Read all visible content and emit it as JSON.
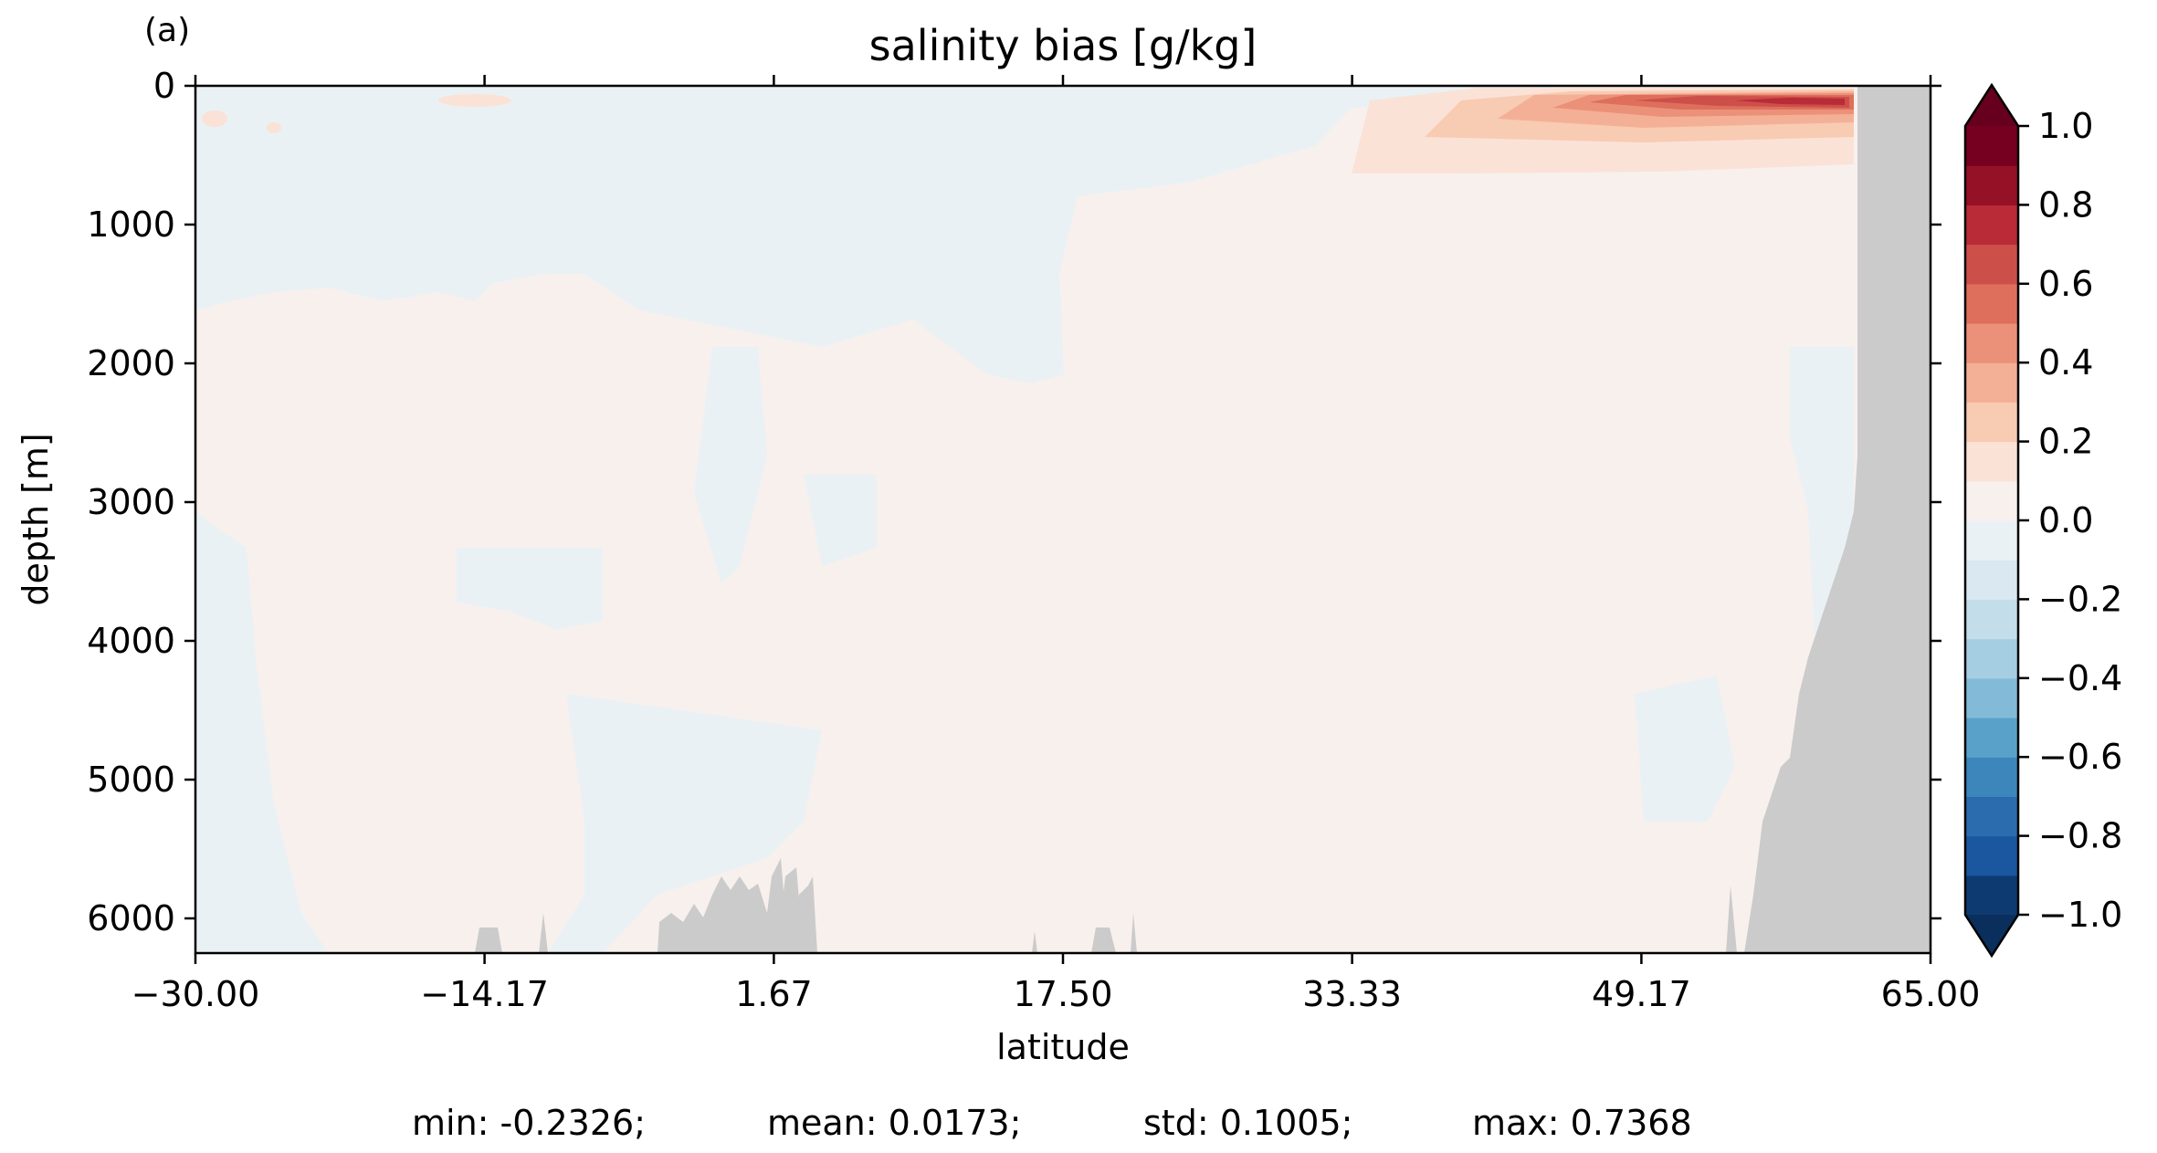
{
  "panel_label": "(a)",
  "stats": [
    {
      "label": "min",
      "value": "-0.2326",
      "text": "min: -0.2326;"
    },
    {
      "label": "mean",
      "value": "0.0173",
      "text": "mean: 0.0173;"
    },
    {
      "label": "std",
      "value": "0.1005",
      "text": "std: 0.1005;"
    },
    {
      "label": "max",
      "value": "0.7368",
      "text": "max: 0.7368"
    }
  ],
  "chart_data": {
    "type": "heatmap",
    "subtype": "filled-contour latitude-depth section",
    "title": "salinity bias [g/kg]",
    "xlabel": "latitude",
    "ylabel": "depth [m]",
    "xlim": [
      -30.0,
      65.0
    ],
    "ylim": [
      6250,
      0
    ],
    "y_inverted": true,
    "x_ticks": [
      -30.0,
      -14.17,
      1.67,
      17.5,
      33.33,
      49.17,
      65.0
    ],
    "x_tick_labels": [
      "−30.00",
      "−14.17",
      "1.67",
      "17.50",
      "33.33",
      "49.17",
      "65.00"
    ],
    "y_ticks": [
      0,
      1000,
      2000,
      3000,
      4000,
      5000,
      6000
    ],
    "y_tick_labels": [
      "0",
      "1000",
      "2000",
      "3000",
      "4000",
      "5000",
      "6000"
    ],
    "colorbar": {
      "cmap": "RdBu_r",
      "levels": [
        -1.0,
        -0.9,
        -0.8,
        -0.7,
        -0.6,
        -0.5,
        -0.4,
        -0.3,
        -0.2,
        -0.1,
        0.0,
        0.1,
        0.2,
        0.3,
        0.4,
        0.5,
        0.6,
        0.7,
        0.8,
        0.9,
        1.0
      ],
      "extend": "both",
      "ticks": [
        1.0,
        0.8,
        0.6,
        0.4,
        0.2,
        0.0,
        -0.2,
        -0.4,
        -0.6,
        -0.8,
        -1.0
      ],
      "tick_labels": [
        "1.0",
        "0.8",
        "0.6",
        "0.4",
        "0.2",
        "0.0",
        "−0.2",
        "−0.4",
        "−0.6",
        "−0.8",
        "−1.0"
      ],
      "colors": [
        "#0d3b71",
        "#1a579f",
        "#2b6cae",
        "#3d86bc",
        "#5aa1ca",
        "#82bad8",
        "#a6cee3",
        "#c3ddeb",
        "#d9e8f1",
        "#eaf1f4",
        "#f8f0ed",
        "#fbe2d6",
        "#f8cbb3",
        "#f4b096",
        "#ec9179",
        "#de6f5c",
        "#cd4f4a",
        "#b82b37",
        "#951125",
        "#75001f"
      ],
      "under_color": "#0b2f5c",
      "over_color": "#67001f"
    },
    "land_color": "#cbcbcb",
    "fields": [
      {
        "name": "near-zero positive background",
        "value_range": [
          0.0,
          0.1
        ]
      },
      {
        "name": "near-zero negative patches",
        "value_range": [
          -0.1,
          0.0
        ]
      },
      {
        "name": "northern surface salty bias",
        "lat_range": [
          40,
          62
        ],
        "depth_range": [
          0,
          600
        ],
        "peak": 0.7368
      }
    ]
  }
}
